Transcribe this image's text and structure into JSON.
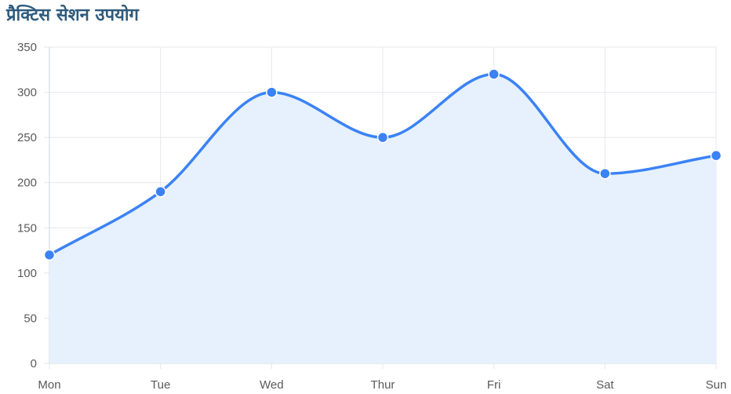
{
  "title": "प्रैक्टिस सेशन उपयोग",
  "colors": {
    "line": "#3b82f6",
    "fill": "#e6f1fd",
    "point": "#3b82f6",
    "grid": "#e5e7eb",
    "title": "#2f5b7c",
    "tick_text": "#5a5a5a"
  },
  "chart_data": {
    "type": "area",
    "categories": [
      "Mon",
      "Tue",
      "Wed",
      "Thur",
      "Fri",
      "Sat",
      "Sun"
    ],
    "series": [
      {
        "values": [
          120,
          190,
          300,
          250,
          320,
          210,
          230
        ]
      }
    ],
    "ylim": [
      0,
      350
    ],
    "yticks": [
      0,
      50,
      100,
      150,
      200,
      250,
      300,
      350
    ],
    "grid": true,
    "smooth": true,
    "xlabel": "",
    "ylabel": ""
  }
}
